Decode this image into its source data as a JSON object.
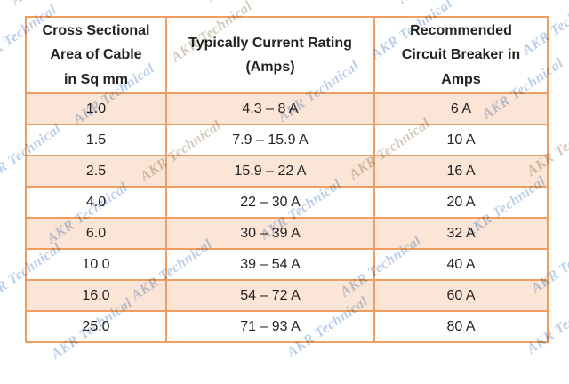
{
  "chart_data": {
    "type": "table",
    "headers": [
      [
        "Cross Sectional",
        "Area of Cable",
        "in Sq mm"
      ],
      [
        "Typically Current Rating",
        "(Amps)"
      ],
      [
        "Recommended",
        "Circuit Breaker in",
        "Amps"
      ]
    ],
    "rows": [
      {
        "area": "1.0",
        "rating": "4.3 – 8 A",
        "breaker": "6 A"
      },
      {
        "area": "1.5",
        "rating": "7.9 – 15.9 A",
        "breaker": "10 A"
      },
      {
        "area": "2.5",
        "rating": "15.9 – 22 A",
        "breaker": "16 A"
      },
      {
        "area": "4.0",
        "rating": "22 – 30 A",
        "breaker": "20 A"
      },
      {
        "area": "6.0",
        "rating": "30 – 39 A",
        "breaker": "32 A"
      },
      {
        "area": "10.0",
        "rating": "39 – 54 A",
        "breaker": "40 A"
      },
      {
        "area": "16.0",
        "rating": "54 – 72 A",
        "breaker": "60 A"
      },
      {
        "area": "25.0",
        "rating": "71 – 93 A",
        "breaker": "80 A"
      }
    ]
  },
  "watermark": {
    "text": "AKR Technical",
    "color_blue": "#bccfe9",
    "color_tan": "#d3ccbd"
  },
  "colors": {
    "border": "#ef9d60",
    "stripe": "#fbe5d6",
    "text": "#222222"
  }
}
